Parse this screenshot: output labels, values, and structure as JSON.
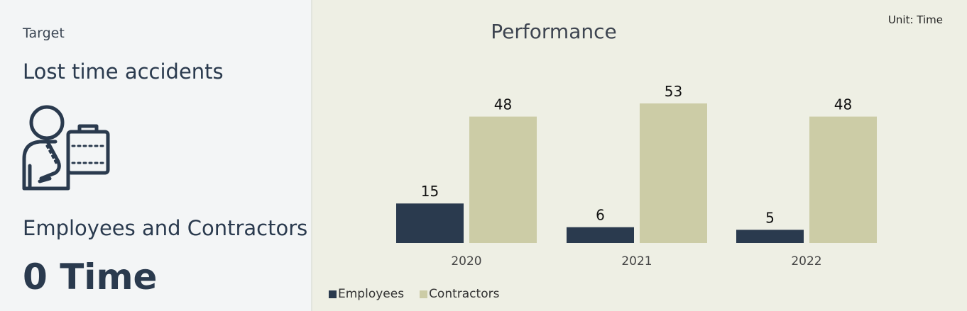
{
  "kpi": {
    "target_label": "Target",
    "metric_title": "Lost time accidents",
    "icon": "injured-worker-briefcase-icon",
    "group_label": "Employees and Contractors",
    "target_value": "0 Time"
  },
  "unit_label": "Unit: Time",
  "colors": {
    "employees": "#2a3a4e",
    "contractors": "#cccca6",
    "left_bg": "#f3f5f6",
    "right_bg": "#eeefe4"
  },
  "chart_data": {
    "type": "bar",
    "title": "Performance",
    "categories": [
      "2020",
      "2021",
      "2022"
    ],
    "series": [
      {
        "name": "Employees",
        "values": [
          15,
          6,
          5
        ]
      },
      {
        "name": "Contractors",
        "values": [
          48,
          53,
          48
        ]
      }
    ],
    "ylim": [
      0,
      53
    ],
    "grid": false,
    "legend": "bottom-left",
    "data_labels": true
  }
}
